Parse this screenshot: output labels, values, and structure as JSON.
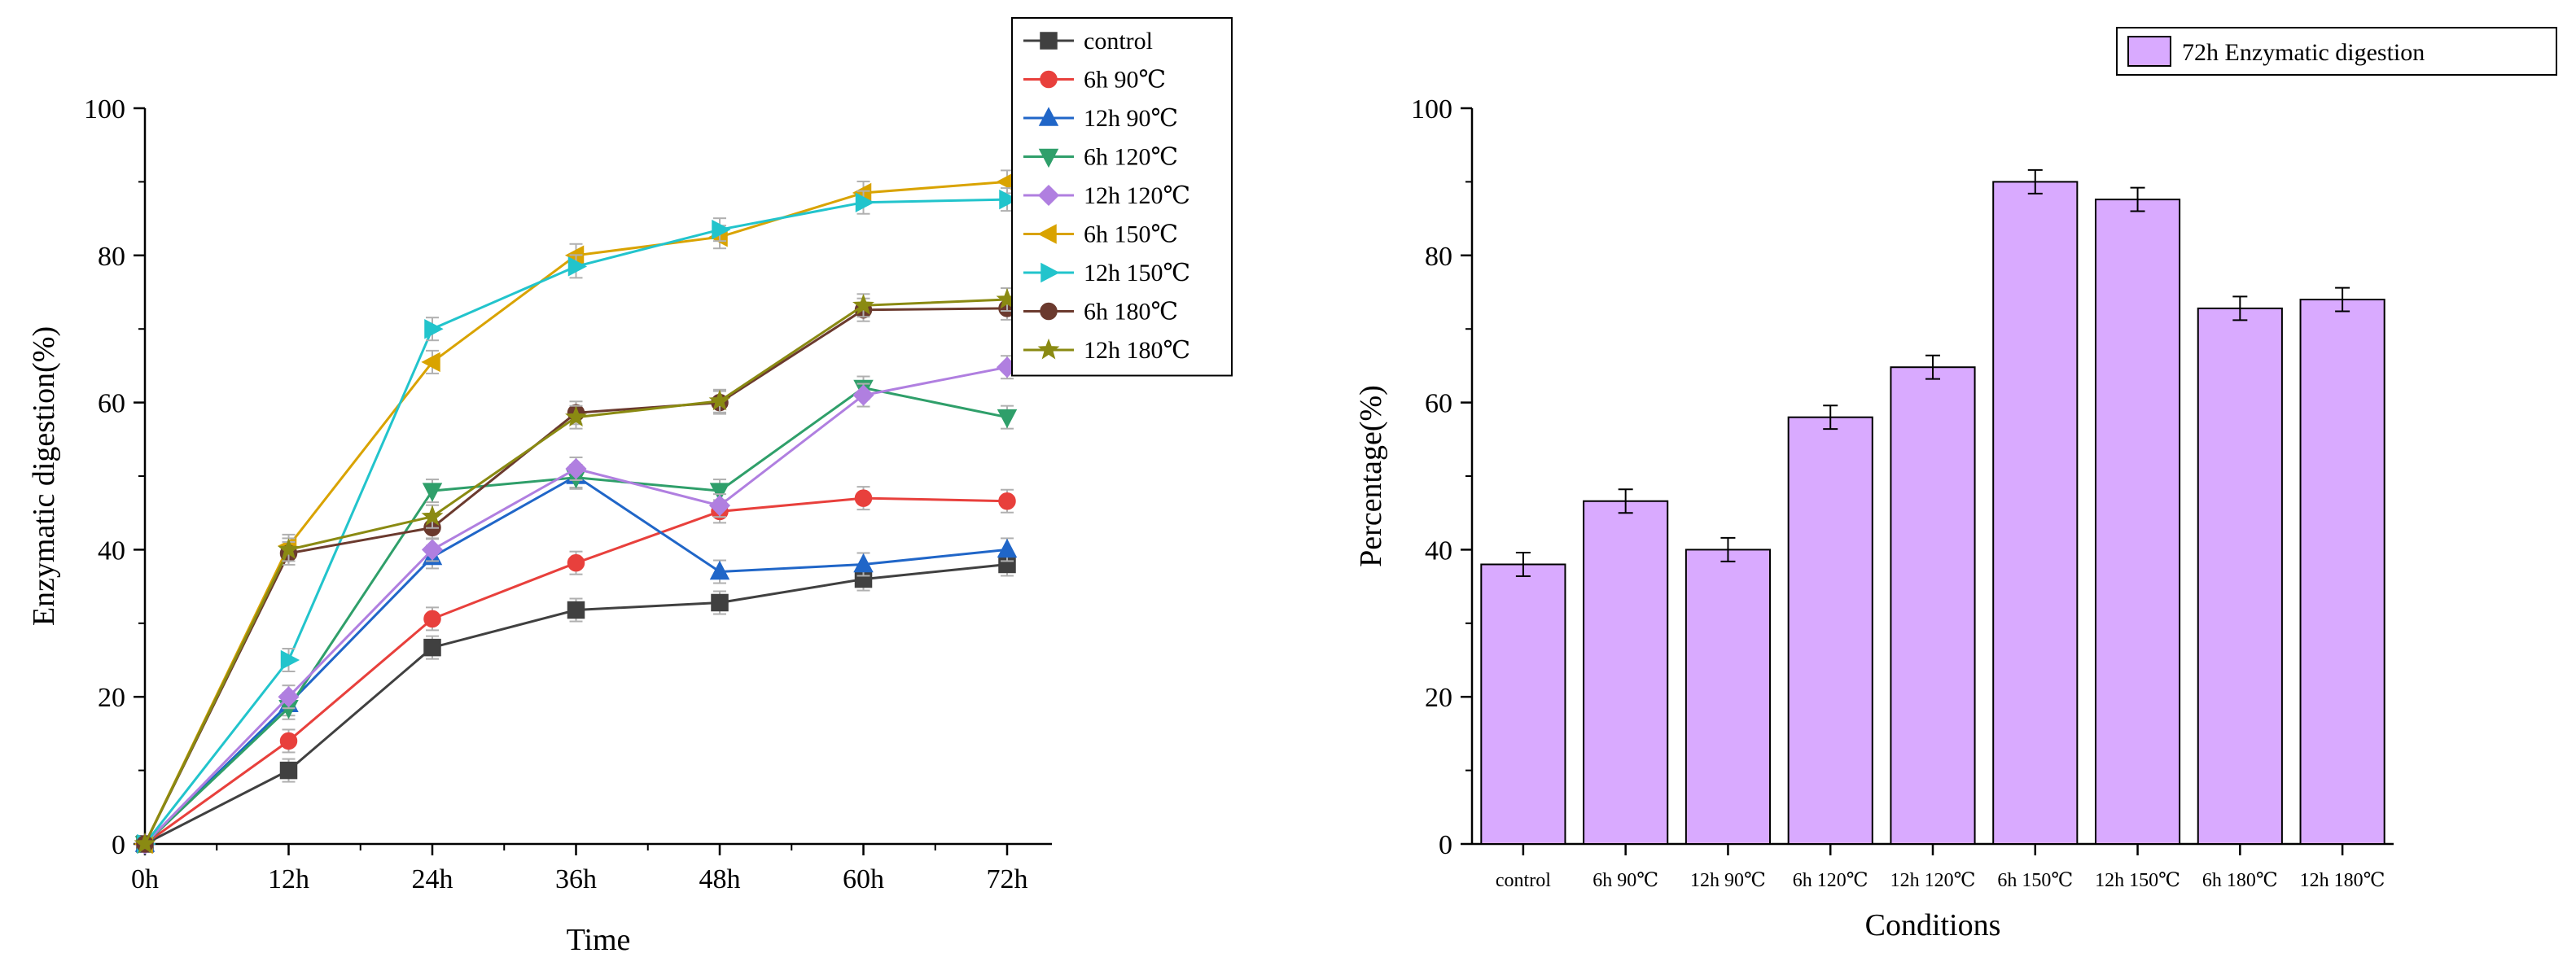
{
  "chart_data": [
    {
      "type": "line",
      "xlabel": "Time",
      "ylabel": "Enzymatic digestion(%)",
      "categories": [
        "0h",
        "12h",
        "24h",
        "36h",
        "48h",
        "60h",
        "72h"
      ],
      "ylim": [
        0,
        100
      ],
      "yticks": [
        "0",
        "20",
        "40",
        "60",
        "80",
        "100"
      ],
      "legend_position": "top-right",
      "series": [
        {
          "name": "control",
          "color": "#404040",
          "marker": "square",
          "values": [
            0,
            10,
            26.7,
            31.8,
            32.8,
            36,
            38
          ]
        },
        {
          "name": "6h 90℃",
          "color": "#e8403c",
          "marker": "circle",
          "values": [
            0,
            14,
            30.6,
            38.2,
            45.2,
            47,
            46.6
          ]
        },
        {
          "name": "12h 90℃",
          "color": "#2066c8",
          "marker": "triangle-up",
          "values": [
            0,
            19,
            39,
            50,
            37,
            38,
            40
          ]
        },
        {
          "name": "6h 120℃",
          "color": "#2f9f6a",
          "marker": "triangle-down",
          "values": [
            0,
            18.5,
            48,
            49.8,
            48,
            62,
            58
          ]
        },
        {
          "name": "12h 120℃",
          "color": "#b07fe0",
          "marker": "diamond",
          "values": [
            0,
            20,
            40,
            51,
            46,
            61,
            64.8
          ]
        },
        {
          "name": "6h 150℃",
          "color": "#d9a300",
          "marker": "triangle-left",
          "values": [
            0,
            40.5,
            65.5,
            80,
            82.5,
            88.5,
            90
          ]
        },
        {
          "name": "12h 150℃",
          "color": "#22c4cc",
          "marker": "triangle-right",
          "values": [
            0,
            25,
            70,
            78.5,
            83.5,
            87.2,
            87.6
          ]
        },
        {
          "name": "6h 180℃",
          "color": "#6b3a2e",
          "marker": "circle",
          "values": [
            0,
            39.5,
            43,
            58.6,
            60,
            72.6,
            72.8
          ]
        },
        {
          "name": "12h 180℃",
          "color": "#8a8a12",
          "marker": "star",
          "values": [
            0,
            40,
            44.5,
            58,
            60.2,
            73.2,
            74
          ]
        }
      ]
    },
    {
      "type": "bar",
      "xlabel": "Conditions",
      "ylabel": "Percentage(%)",
      "categories": [
        "control",
        "6h 90℃",
        "12h 90℃",
        "6h 120℃",
        "12h 120℃",
        "6h 150℃",
        "12h 150℃",
        "6h 180℃",
        "12h 180℃"
      ],
      "ylim": [
        0,
        100
      ],
      "yticks": [
        "0",
        "20",
        "40",
        "60",
        "80",
        "100"
      ],
      "legend_position": "top-right",
      "series": [
        {
          "name": "72h Enzymatic digestion",
          "color": "#d9aaff",
          "values": [
            38,
            46.6,
            40,
            58,
            64.8,
            90,
            87.6,
            72.8,
            74
          ],
          "errors": [
            1.6,
            1.6,
            1.6,
            1.6,
            1.6,
            1.6,
            1.6,
            1.6,
            1.6
          ]
        }
      ]
    }
  ]
}
